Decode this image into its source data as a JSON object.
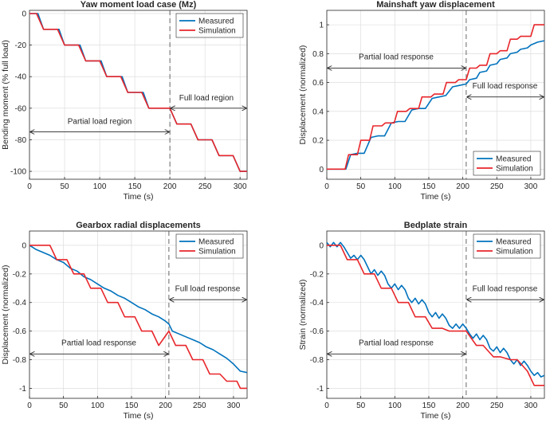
{
  "colors": {
    "measured": "#0072BD",
    "simulation": "#E8262B",
    "axis": "#262626",
    "grid": "#d8d8d8"
  },
  "chart_data": [
    {
      "type": "line",
      "title": "Yaw moment load case (Mz)",
      "xlabel": "Time (s)",
      "ylabel": "Bending moment (% full load)",
      "xlim": [
        0,
        310
      ],
      "ylim": [
        -105,
        2
      ],
      "xticks": [
        0,
        50,
        100,
        150,
        200,
        250,
        300
      ],
      "yticks": [
        0,
        -20,
        -40,
        -60,
        -80,
        -100
      ],
      "xtick_labels": [
        "0",
        "50",
        "100",
        "150",
        "200",
        "250",
        "300"
      ],
      "ytick_labels": [
        "0",
        "-20",
        "-40",
        "-60",
        "-80",
        "-100"
      ],
      "legend": {
        "position": "top-right",
        "entries": [
          "Measured",
          "Simulation"
        ]
      },
      "vline_x": 200,
      "annotations": [
        {
          "text": "Partial load region",
          "x1": 0,
          "x2": 200,
          "y": -75,
          "text_x": 100,
          "text_y": -70
        },
        {
          "text": "Full load region",
          "x1": 200,
          "x2": 310,
          "y": -60,
          "text_x": 252,
          "text_y": -55
        }
      ],
      "series": [
        {
          "name": "Measured",
          "x": [
            0,
            12,
            20,
            30,
            42,
            50,
            60,
            72,
            80,
            90,
            102,
            110,
            120,
            132,
            140,
            150,
            162,
            170,
            180,
            192,
            200,
            210,
            222,
            230,
            240,
            252,
            260,
            270,
            282,
            290,
            300,
            310
          ],
          "y": [
            0,
            0,
            -10,
            -10,
            -10,
            -20,
            -20,
            -20,
            -30,
            -30,
            -30,
            -40,
            -40,
            -40,
            -50,
            -50,
            -50,
            -60,
            -60,
            -60,
            -60,
            -70,
            -70,
            -70,
            -80,
            -80,
            -80,
            -90,
            -90,
            -90,
            -100,
            -100
          ]
        },
        {
          "name": "Simulation",
          "x": [
            0,
            10,
            20,
            30,
            40,
            50,
            60,
            70,
            80,
            90,
            100,
            110,
            120,
            130,
            140,
            150,
            160,
            170,
            180,
            190,
            200,
            210,
            220,
            230,
            240,
            250,
            260,
            270,
            280,
            290,
            300,
            310
          ],
          "y": [
            0,
            0,
            -10,
            -10,
            -10,
            -20,
            -20,
            -20,
            -30,
            -30,
            -30,
            -40,
            -40,
            -40,
            -50,
            -50,
            -50,
            -60,
            -60,
            -60,
            -60,
            -70,
            -70,
            -70,
            -80,
            -80,
            -80,
            -90,
            -90,
            -90,
            -100,
            -100
          ]
        }
      ]
    },
    {
      "type": "line",
      "title": "Mainshaft yaw displacement",
      "xlabel": "Time (s)",
      "ylabel": "Displacement (normalized)",
      "xlim": [
        0,
        320
      ],
      "ylim": [
        -0.07,
        1.1
      ],
      "xticks": [
        0,
        50,
        100,
        150,
        200,
        250,
        300
      ],
      "yticks": [
        0,
        0.2,
        0.4,
        0.6,
        0.8,
        1
      ],
      "xtick_labels": [
        "0",
        "50",
        "100",
        "150",
        "200",
        "250",
        "300"
      ],
      "ytick_labels": [
        "0",
        "0.2",
        "0.4",
        "0.6",
        "0.8",
        "1"
      ],
      "legend": {
        "position": "bottom-right",
        "entries": [
          "Measured",
          "Simulation"
        ]
      },
      "vline_x": 205,
      "annotations": [
        {
          "text": "Partial load response",
          "x1": 0,
          "x2": 205,
          "y": 0.7,
          "text_x": 102,
          "text_y": 0.76
        },
        {
          "text": "Full load response",
          "x1": 205,
          "x2": 320,
          "y": 0.5,
          "text_x": 262,
          "text_y": 0.56
        }
      ],
      "series": [
        {
          "name": "Measured",
          "x": [
            0,
            28,
            35,
            45,
            55,
            65,
            75,
            85,
            95,
            105,
            115,
            125,
            135,
            145,
            155,
            165,
            175,
            185,
            195,
            205,
            210,
            220,
            225,
            235,
            240,
            250,
            255,
            265,
            270,
            280,
            285,
            295,
            300,
            310,
            320
          ],
          "y": [
            0,
            0,
            0.1,
            0.11,
            0.11,
            0.22,
            0.23,
            0.23,
            0.32,
            0.33,
            0.33,
            0.41,
            0.42,
            0.42,
            0.49,
            0.5,
            0.51,
            0.57,
            0.58,
            0.59,
            0.62,
            0.63,
            0.67,
            0.68,
            0.72,
            0.73,
            0.76,
            0.77,
            0.8,
            0.81,
            0.83,
            0.84,
            0.86,
            0.88,
            0.89
          ]
        },
        {
          "name": "Simulation",
          "x": [
            0,
            27,
            32,
            45,
            50,
            63,
            68,
            81,
            86,
            99,
            104,
            117,
            122,
            135,
            140,
            153,
            158,
            171,
            176,
            189,
            194,
            205,
            210,
            220,
            225,
            235,
            240,
            250,
            255,
            265,
            270,
            280,
            285,
            300,
            305,
            320
          ],
          "y": [
            0,
            0,
            0.1,
            0.1,
            0.2,
            0.2,
            0.3,
            0.3,
            0.32,
            0.32,
            0.4,
            0.4,
            0.42,
            0.42,
            0.5,
            0.5,
            0.52,
            0.52,
            0.6,
            0.6,
            0.62,
            0.62,
            0.7,
            0.7,
            0.72,
            0.72,
            0.8,
            0.8,
            0.82,
            0.82,
            0.9,
            0.9,
            0.92,
            0.92,
            1.0,
            1.0
          ]
        }
      ]
    },
    {
      "type": "line",
      "title": "Gearbox radial displacements",
      "xlabel": "Time (s)",
      "ylabel": "Displacement (normalized)",
      "xlim": [
        0,
        320
      ],
      "ylim": [
        -1.07,
        0.1
      ],
      "xticks": [
        0,
        50,
        100,
        150,
        200,
        250,
        300
      ],
      "yticks": [
        0,
        -0.2,
        -0.4,
        -0.6,
        -0.8,
        -1
      ],
      "xtick_labels": [
        "0",
        "50",
        "100",
        "150",
        "200",
        "250",
        "300"
      ],
      "ytick_labels": [
        "0",
        "-0.2",
        "-0.4",
        "-0.6",
        "-0.8",
        "-1"
      ],
      "legend": {
        "position": "top-right",
        "entries": [
          "Measured",
          "Simulation"
        ]
      },
      "vline_x": 205,
      "annotations": [
        {
          "text": "Partial load response",
          "x1": 0,
          "x2": 205,
          "y": -0.76,
          "text_x": 102,
          "text_y": -0.7
        },
        {
          "text": "Full load response",
          "x1": 205,
          "x2": 320,
          "y": -0.38,
          "text_x": 262,
          "text_y": -0.32
        }
      ],
      "series": [
        {
          "name": "Measured",
          "x": [
            0,
            10,
            20,
            30,
            40,
            50,
            60,
            70,
            80,
            90,
            100,
            110,
            120,
            130,
            140,
            150,
            160,
            170,
            180,
            190,
            200,
            205,
            210,
            220,
            230,
            240,
            250,
            260,
            270,
            280,
            290,
            300,
            310,
            320
          ],
          "y": [
            0,
            -0.03,
            -0.05,
            -0.07,
            -0.1,
            -0.12,
            -0.16,
            -0.18,
            -0.22,
            -0.24,
            -0.27,
            -0.3,
            -0.32,
            -0.35,
            -0.37,
            -0.4,
            -0.43,
            -0.45,
            -0.48,
            -0.5,
            -0.53,
            -0.55,
            -0.6,
            -0.62,
            -0.64,
            -0.66,
            -0.68,
            -0.71,
            -0.73,
            -0.76,
            -0.79,
            -0.83,
            -0.88,
            -0.89
          ]
        },
        {
          "name": "Simulation",
          "x": [
            0,
            30,
            40,
            55,
            65,
            80,
            90,
            105,
            115,
            130,
            140,
            155,
            165,
            180,
            190,
            205,
            215,
            230,
            240,
            255,
            265,
            280,
            290,
            305,
            310,
            320
          ],
          "y": [
            0,
            0,
            -0.1,
            -0.1,
            -0.2,
            -0.2,
            -0.3,
            -0.3,
            -0.4,
            -0.4,
            -0.5,
            -0.5,
            -0.6,
            -0.6,
            -0.7,
            -0.6,
            -0.7,
            -0.7,
            -0.8,
            -0.8,
            -0.9,
            -0.9,
            -0.95,
            -0.95,
            -1.0,
            -1.0
          ]
        }
      ]
    },
    {
      "type": "line",
      "title": "Bedplate strain",
      "xlabel": "Time (s)",
      "ylabel": "Strain (normalized)",
      "xlim": [
        0,
        320
      ],
      "ylim": [
        -1.07,
        0.1
      ],
      "xticks": [
        0,
        50,
        100,
        150,
        200,
        250,
        300
      ],
      "yticks": [
        0,
        -0.2,
        -0.4,
        -0.6,
        -0.8,
        -1
      ],
      "xtick_labels": [
        "0",
        "50",
        "100",
        "150",
        "200",
        "250",
        "300"
      ],
      "ytick_labels": [
        "0",
        "-0.2",
        "-0.4",
        "-0.6",
        "-0.8",
        "-1"
      ],
      "legend": {
        "position": "top-right",
        "entries": [
          "Measured",
          "Simulation"
        ]
      },
      "vline_x": 205,
      "annotations": [
        {
          "text": "Partial load response",
          "x1": 0,
          "x2": 205,
          "y": -0.76,
          "text_x": 102,
          "text_y": -0.7
        },
        {
          "text": "Full load response",
          "x1": 205,
          "x2": 320,
          "y": -0.38,
          "text_x": 262,
          "text_y": -0.32
        }
      ],
      "series": [
        {
          "name": "Measured",
          "x": [
            0,
            5,
            10,
            15,
            20,
            25,
            30,
            35,
            40,
            45,
            50,
            55,
            60,
            65,
            70,
            75,
            80,
            85,
            90,
            95,
            100,
            105,
            110,
            115,
            120,
            125,
            130,
            135,
            140,
            145,
            150,
            155,
            160,
            165,
            170,
            175,
            180,
            185,
            190,
            195,
            200,
            205,
            210,
            215,
            220,
            225,
            230,
            235,
            240,
            245,
            250,
            255,
            260,
            265,
            270,
            275,
            280,
            285,
            290,
            295,
            300,
            305,
            310,
            315,
            320
          ],
          "y": [
            0.02,
            -0.01,
            0.02,
            -0.01,
            0.02,
            -0.01,
            -0.05,
            -0.09,
            -0.07,
            -0.1,
            -0.07,
            -0.1,
            -0.15,
            -0.2,
            -0.17,
            -0.21,
            -0.18,
            -0.21,
            -0.27,
            -0.3,
            -0.27,
            -0.31,
            -0.28,
            -0.31,
            -0.37,
            -0.4,
            -0.37,
            -0.41,
            -0.38,
            -0.41,
            -0.47,
            -0.5,
            -0.47,
            -0.51,
            -0.48,
            -0.51,
            -0.56,
            -0.58,
            -0.55,
            -0.58,
            -0.55,
            -0.58,
            -0.62,
            -0.65,
            -0.62,
            -0.66,
            -0.63,
            -0.66,
            -0.72,
            -0.74,
            -0.71,
            -0.75,
            -0.72,
            -0.75,
            -0.8,
            -0.83,
            -0.8,
            -0.84,
            -0.81,
            -0.84,
            -0.88,
            -0.91,
            -0.89,
            -0.92,
            -0.91
          ]
        },
        {
          "name": "Simulation",
          "x": [
            0,
            20,
            30,
            45,
            55,
            70,
            80,
            95,
            105,
            120,
            130,
            145,
            155,
            170,
            180,
            195,
            205,
            220,
            230,
            245,
            255,
            270,
            280,
            295,
            305,
            320
          ],
          "y": [
            0,
            0,
            -0.1,
            -0.1,
            -0.2,
            -0.2,
            -0.3,
            -0.3,
            -0.4,
            -0.4,
            -0.5,
            -0.5,
            -0.58,
            -0.58,
            -0.6,
            -0.6,
            -0.6,
            -0.7,
            -0.7,
            -0.78,
            -0.78,
            -0.8,
            -0.8,
            -0.88,
            -0.98,
            -0.98
          ]
        }
      ]
    }
  ]
}
